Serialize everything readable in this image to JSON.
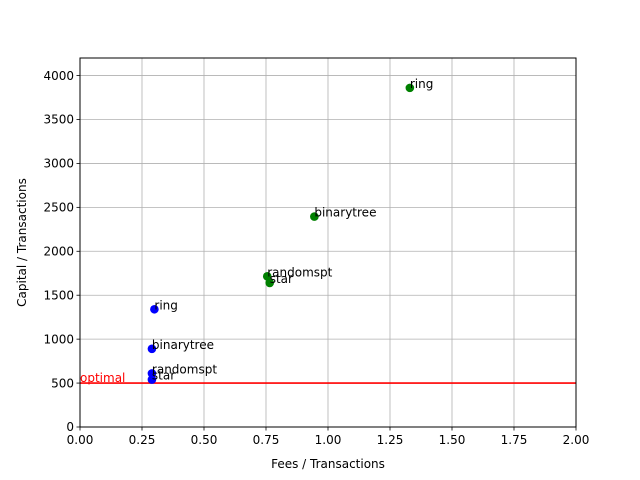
{
  "chart_data": {
    "type": "scatter",
    "xlabel": "Fees / Transactions",
    "ylabel": "Capital / Transactions",
    "xlim": [
      0,
      2.0
    ],
    "ylim": [
      0,
      4200
    ],
    "xticks": [
      "0.00",
      "0.25",
      "0.50",
      "0.75",
      "1.00",
      "1.25",
      "1.50",
      "1.75",
      "2.00"
    ],
    "yticks": [
      "0",
      "500",
      "1000",
      "1500",
      "2000",
      "2500",
      "3000",
      "3500",
      "4000"
    ],
    "grid": true,
    "series": [
      {
        "color": "#0000ff",
        "points": [
          {
            "label": "ring",
            "x": 0.3,
            "y": 1340
          },
          {
            "label": "binarytree",
            "x": 0.29,
            "y": 890
          },
          {
            "label": "randomspt",
            "x": 0.29,
            "y": 610
          },
          {
            "label": "star",
            "x": 0.29,
            "y": 540
          }
        ]
      },
      {
        "color": "#008000",
        "points": [
          {
            "label": "ring",
            "x": 1.33,
            "y": 3860
          },
          {
            "label": "binarytree",
            "x": 0.945,
            "y": 2395
          },
          {
            "label": "randomspt",
            "x": 0.755,
            "y": 1715
          },
          {
            "label": "star",
            "x": 0.765,
            "y": 1640
          }
        ]
      }
    ],
    "reference_line": {
      "label": "optimal",
      "y": 500,
      "color": "#ff0000"
    }
  }
}
